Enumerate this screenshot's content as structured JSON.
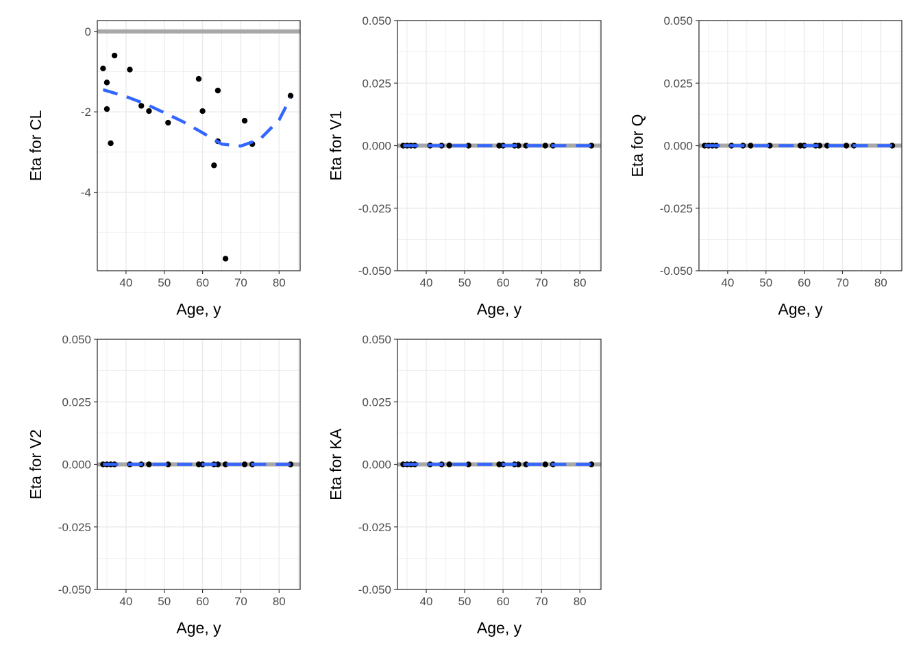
{
  "colors": {
    "reference_line": "#a8a8a8",
    "smooth_line": "#3366ff",
    "points": "#000000",
    "grid": "#ebebeb",
    "panel_border": "#333333",
    "tick_label": "#4d4d4d"
  },
  "chart_data": [
    {
      "type": "scatter",
      "panel": "CL",
      "xlabel": "Age, y",
      "ylabel": "Eta for CL",
      "xlim": [
        32.5,
        85.5
      ],
      "ylim": [
        -5.95,
        0.27
      ],
      "x_ticks": [
        40,
        50,
        60,
        70,
        80
      ],
      "y_ticks": [
        -4,
        -2,
        0
      ],
      "y_tick_labels": [
        "-4",
        "-2",
        "0"
      ],
      "reference_y": 0,
      "grid": true,
      "points": [
        {
          "x": 34,
          "y": -0.92
        },
        {
          "x": 35,
          "y": -1.27
        },
        {
          "x": 35,
          "y": -1.93
        },
        {
          "x": 36,
          "y": -2.78
        },
        {
          "x": 37,
          "y": -0.6
        },
        {
          "x": 41,
          "y": -0.95
        },
        {
          "x": 44,
          "y": -1.85
        },
        {
          "x": 46,
          "y": -1.98
        },
        {
          "x": 51,
          "y": -2.27
        },
        {
          "x": 59,
          "y": -1.18
        },
        {
          "x": 60,
          "y": -1.98
        },
        {
          "x": 63,
          "y": -3.33
        },
        {
          "x": 64,
          "y": -1.47
        },
        {
          "x": 64,
          "y": -2.73
        },
        {
          "x": 66,
          "y": -5.65
        },
        {
          "x": 71,
          "y": -2.22
        },
        {
          "x": 73,
          "y": -2.8
        },
        {
          "x": 83,
          "y": -1.6
        }
      ],
      "smooth": [
        {
          "x": 34,
          "y": -1.45
        },
        {
          "x": 40,
          "y": -1.62
        },
        {
          "x": 45,
          "y": -1.8
        },
        {
          "x": 50,
          "y": -2.02
        },
        {
          "x": 55,
          "y": -2.25
        },
        {
          "x": 60,
          "y": -2.52
        },
        {
          "x": 65,
          "y": -2.8
        },
        {
          "x": 70,
          "y": -2.85
        },
        {
          "x": 75,
          "y": -2.68
        },
        {
          "x": 80,
          "y": -2.2
        },
        {
          "x": 83,
          "y": -1.65
        }
      ]
    },
    {
      "type": "scatter",
      "panel": "V1",
      "xlabel": "Age, y",
      "ylabel": "Eta for V1",
      "xlim": [
        32.5,
        85.5
      ],
      "ylim": [
        -0.05,
        0.05
      ],
      "x_ticks": [
        40,
        50,
        60,
        70,
        80
      ],
      "y_ticks": [
        -0.05,
        -0.025,
        0,
        0.025,
        0.05
      ],
      "y_tick_labels": [
        "-0.050",
        "-0.025",
        "0.000",
        "0.025",
        "0.050"
      ],
      "reference_y": 0,
      "grid": true,
      "points": [
        {
          "x": 34,
          "y": 0
        },
        {
          "x": 35,
          "y": 0
        },
        {
          "x": 36,
          "y": 0
        },
        {
          "x": 37,
          "y": 0
        },
        {
          "x": 41,
          "y": 0
        },
        {
          "x": 44,
          "y": 0
        },
        {
          "x": 46,
          "y": 0
        },
        {
          "x": 51,
          "y": 0
        },
        {
          "x": 59,
          "y": 0
        },
        {
          "x": 60,
          "y": 0
        },
        {
          "x": 63,
          "y": 0
        },
        {
          "x": 64,
          "y": 0
        },
        {
          "x": 66,
          "y": 0
        },
        {
          "x": 71,
          "y": 0
        },
        {
          "x": 73,
          "y": 0
        },
        {
          "x": 83,
          "y": 0
        }
      ],
      "smooth": [
        {
          "x": 34,
          "y": 0
        },
        {
          "x": 83,
          "y": 0
        }
      ]
    },
    {
      "type": "scatter",
      "panel": "Q",
      "xlabel": "Age, y",
      "ylabel": "Eta for Q",
      "xlim": [
        32.5,
        85.5
      ],
      "ylim": [
        -0.05,
        0.05
      ],
      "x_ticks": [
        40,
        50,
        60,
        70,
        80
      ],
      "y_ticks": [
        -0.05,
        -0.025,
        0,
        0.025,
        0.05
      ],
      "y_tick_labels": [
        "-0.050",
        "-0.025",
        "0.000",
        "0.025",
        "0.050"
      ],
      "reference_y": 0,
      "grid": true,
      "points": [
        {
          "x": 34,
          "y": 0
        },
        {
          "x": 35,
          "y": 0
        },
        {
          "x": 36,
          "y": 0
        },
        {
          "x": 37,
          "y": 0
        },
        {
          "x": 41,
          "y": 0
        },
        {
          "x": 44,
          "y": 0
        },
        {
          "x": 46,
          "y": 0
        },
        {
          "x": 51,
          "y": 0
        },
        {
          "x": 59,
          "y": 0
        },
        {
          "x": 60,
          "y": 0
        },
        {
          "x": 63,
          "y": 0
        },
        {
          "x": 64,
          "y": 0
        },
        {
          "x": 66,
          "y": 0
        },
        {
          "x": 71,
          "y": 0
        },
        {
          "x": 73,
          "y": 0
        },
        {
          "x": 83,
          "y": 0
        }
      ],
      "smooth": [
        {
          "x": 34,
          "y": 0
        },
        {
          "x": 83,
          "y": 0
        }
      ]
    },
    {
      "type": "scatter",
      "panel": "V2",
      "xlabel": "Age, y",
      "ylabel": "Eta for V2",
      "xlim": [
        32.5,
        85.5
      ],
      "ylim": [
        -0.05,
        0.05
      ],
      "x_ticks": [
        40,
        50,
        60,
        70,
        80
      ],
      "y_ticks": [
        -0.05,
        -0.025,
        0,
        0.025,
        0.05
      ],
      "y_tick_labels": [
        "-0.050",
        "-0.025",
        "0.000",
        "0.025",
        "0.050"
      ],
      "reference_y": 0,
      "grid": true,
      "points": [
        {
          "x": 34,
          "y": 0
        },
        {
          "x": 35,
          "y": 0
        },
        {
          "x": 36,
          "y": 0
        },
        {
          "x": 37,
          "y": 0
        },
        {
          "x": 41,
          "y": 0
        },
        {
          "x": 44,
          "y": 0
        },
        {
          "x": 46,
          "y": 0
        },
        {
          "x": 51,
          "y": 0
        },
        {
          "x": 59,
          "y": 0
        },
        {
          "x": 60,
          "y": 0
        },
        {
          "x": 63,
          "y": 0
        },
        {
          "x": 64,
          "y": 0
        },
        {
          "x": 66,
          "y": 0
        },
        {
          "x": 71,
          "y": 0
        },
        {
          "x": 73,
          "y": 0
        },
        {
          "x": 83,
          "y": 0
        }
      ],
      "smooth": [
        {
          "x": 34,
          "y": 0
        },
        {
          "x": 83,
          "y": 0
        }
      ]
    },
    {
      "type": "scatter",
      "panel": "KA",
      "xlabel": "Age, y",
      "ylabel": "Eta for KA",
      "xlim": [
        32.5,
        85.5
      ],
      "ylim": [
        -0.05,
        0.05
      ],
      "x_ticks": [
        40,
        50,
        60,
        70,
        80
      ],
      "y_ticks": [
        -0.05,
        -0.025,
        0,
        0.025,
        0.05
      ],
      "y_tick_labels": [
        "-0.050",
        "-0.025",
        "0.000",
        "0.025",
        "0.050"
      ],
      "reference_y": 0,
      "grid": true,
      "points": [
        {
          "x": 34,
          "y": 0
        },
        {
          "x": 35,
          "y": 0
        },
        {
          "x": 36,
          "y": 0
        },
        {
          "x": 37,
          "y": 0
        },
        {
          "x": 41,
          "y": 0
        },
        {
          "x": 44,
          "y": 0
        },
        {
          "x": 46,
          "y": 0
        },
        {
          "x": 51,
          "y": 0
        },
        {
          "x": 59,
          "y": 0
        },
        {
          "x": 60,
          "y": 0
        },
        {
          "x": 63,
          "y": 0
        },
        {
          "x": 64,
          "y": 0
        },
        {
          "x": 66,
          "y": 0
        },
        {
          "x": 71,
          "y": 0
        },
        {
          "x": 73,
          "y": 0
        },
        {
          "x": 83,
          "y": 0
        }
      ],
      "smooth": [
        {
          "x": 34,
          "y": 0
        },
        {
          "x": 83,
          "y": 0
        }
      ]
    }
  ]
}
